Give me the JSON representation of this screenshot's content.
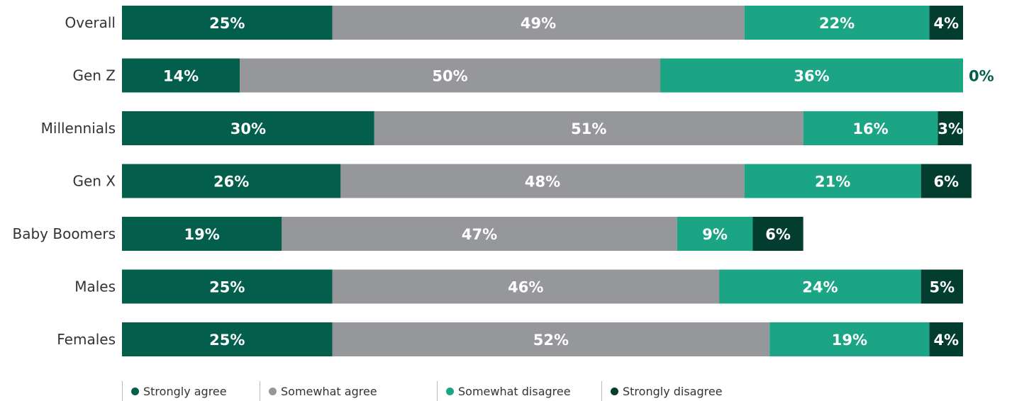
{
  "chart_data": {
    "type": "bar",
    "orientation": "horizontal",
    "stacked": true,
    "title": "",
    "xlabel": "",
    "ylabel": "",
    "xlim": [
      0,
      100
    ],
    "categories": [
      "Overall",
      "Gen Z",
      "Millennials",
      "Gen X",
      "Baby Boomers",
      "Males",
      "Females"
    ],
    "series": [
      {
        "name": "Strongly agree",
        "color": "#035f4c",
        "label_color": "#ffffff",
        "values": [
          25,
          14,
          30,
          26,
          19,
          25,
          25
        ]
      },
      {
        "name": "Somewhat agree",
        "color": "#96979b",
        "label_color": "#ffffff",
        "values": [
          49,
          50,
          51,
          48,
          47,
          46,
          52
        ]
      },
      {
        "name": "Somewhat disagree",
        "color": "#1ba584",
        "label_color": "#ffffff",
        "values": [
          22,
          36,
          16,
          21,
          9,
          24,
          19
        ]
      },
      {
        "name": "Strongly disagree",
        "color": "#033d30",
        "label_color": "#ffffff",
        "values": [
          4,
          0,
          3,
          6,
          6,
          5,
          4
        ]
      }
    ],
    "data_labels": [
      [
        "25%",
        "49%",
        "22%",
        "4%"
      ],
      [
        "14%",
        "50%",
        "36%",
        "0%"
      ],
      [
        "30%",
        "51%",
        "16%",
        "3%"
      ],
      [
        "26%",
        "48%",
        "21%",
        "6%"
      ],
      [
        "19%",
        "47%",
        "9%",
        "6%"
      ],
      [
        "25%",
        "46%",
        "24%",
        "5%"
      ],
      [
        "25%",
        "52%",
        "19%",
        "4%"
      ]
    ],
    "legend_position": "bottom",
    "grid": false
  }
}
